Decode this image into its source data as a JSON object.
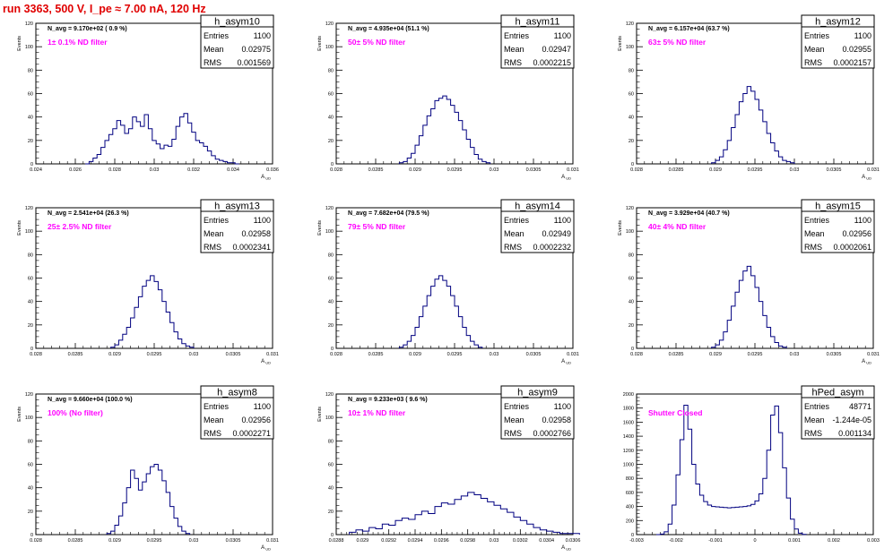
{
  "title": "run 3363,   500 V, I_pe ≈ 7.00 nA, 120 Hz",
  "colors": {
    "title": "#e00000",
    "hist": "#000080",
    "note": "#ff00ff",
    "frame": "#000000"
  },
  "chart_data": [
    {
      "type": "histogram",
      "name": "h_asym10",
      "ylabel": "Events",
      "xlabel": "A_{UD}",
      "xlim": [
        0.024,
        0.036
      ],
      "ylim": [
        0,
        120
      ],
      "xticks": [
        "0.024",
        "0.026",
        "0.028",
        "0.03",
        "0.032",
        "0.034",
        "0.036"
      ],
      "xtick_values": [
        0.024,
        0.026,
        0.028,
        0.03,
        0.032,
        0.034,
        0.036
      ],
      "yticks": [
        0,
        20,
        40,
        60,
        80,
        100,
        120
      ],
      "navg": "N_avg = 9.170e+02 ( 0.9 %)",
      "note": "1± 0.1% ND filter",
      "stats": [
        [
          "Entries",
          "1100"
        ],
        [
          "Mean",
          "0.02975"
        ],
        [
          "RMS",
          "0.001569"
        ]
      ],
      "bin_low": 0.0265,
      "bin_width": 0.0002,
      "values": [
        0,
        2,
        5,
        8,
        14,
        20,
        25,
        30,
        37,
        33,
        26,
        30,
        40,
        36,
        32,
        42,
        30,
        20,
        17,
        13,
        16,
        15,
        21,
        32,
        40,
        43,
        35,
        27,
        20,
        18,
        15,
        11,
        7,
        4,
        3,
        2,
        1,
        1,
        0
      ]
    },
    {
      "type": "histogram",
      "name": "h_asym11",
      "ylabel": "Events",
      "xlabel": "A_{UD}",
      "xlim": [
        0.028,
        0.031
      ],
      "ylim": [
        0,
        120
      ],
      "xticks": [
        "0.028",
        "0.0285",
        "0.029",
        "0.0295",
        "0.03",
        "0.0305",
        "0.031"
      ],
      "xtick_values": [
        0.028,
        0.0285,
        0.029,
        0.0295,
        0.03,
        0.0305,
        0.031
      ],
      "yticks": [
        0,
        20,
        40,
        60,
        80,
        100,
        120
      ],
      "navg": "N_avg = 4.935e+04 (51.1 %)",
      "note": "50± 5% ND filter",
      "stats": [
        [
          "Entries",
          "1100"
        ],
        [
          "Mean",
          "0.02947"
        ],
        [
          "RMS",
          "0.0002215"
        ]
      ],
      "bin_low": 0.0288,
      "bin_width": 5e-05,
      "values": [
        1,
        2,
        5,
        9,
        16,
        24,
        33,
        41,
        47,
        54,
        56,
        58,
        55,
        50,
        44,
        37,
        29,
        21,
        14,
        8,
        4,
        2,
        1
      ]
    },
    {
      "type": "histogram",
      "name": "h_asym12",
      "ylabel": "Events",
      "xlabel": "A_{UD}",
      "xlim": [
        0.028,
        0.031
      ],
      "ylim": [
        0,
        120
      ],
      "xticks": [
        "0.028",
        "0.0285",
        "0.029",
        "0.0295",
        "0.03",
        "0.0305",
        "0.031"
      ],
      "xtick_values": [
        0.028,
        0.0285,
        0.029,
        0.0295,
        0.03,
        0.0305,
        0.031
      ],
      "yticks": [
        0,
        20,
        40,
        60,
        80,
        100,
        120
      ],
      "navg": "N_avg = 6.157e+04 (63.7 %)",
      "note": "63± 5% ND filter",
      "stats": [
        [
          "Entries",
          "1100"
        ],
        [
          "Mean",
          "0.02955"
        ],
        [
          "RMS",
          "0.0002157"
        ]
      ],
      "bin_low": 0.02895,
      "bin_width": 5e-05,
      "values": [
        1,
        3,
        6,
        12,
        20,
        31,
        42,
        53,
        60,
        66,
        62,
        55,
        46,
        36,
        26,
        18,
        11,
        6,
        3,
        2,
        1
      ]
    },
    {
      "type": "histogram",
      "name": "h_asym13",
      "ylabel": "Events",
      "xlabel": "A_{UD}",
      "xlim": [
        0.028,
        0.031
      ],
      "ylim": [
        0,
        120
      ],
      "xticks": [
        "0.028",
        "0.0285",
        "0.029",
        "0.0295",
        "0.03",
        "0.0305",
        "0.031"
      ],
      "xtick_values": [
        0.028,
        0.0285,
        0.029,
        0.0295,
        0.03,
        0.0305,
        0.031
      ],
      "yticks": [
        0,
        20,
        40,
        60,
        80,
        100,
        120
      ],
      "navg": "N_avg = 2.541e+04 (26.3 %)",
      "note": "25± 2.5% ND filter",
      "stats": [
        [
          "Entries",
          "1100"
        ],
        [
          "Mean",
          "0.02958"
        ],
        [
          "RMS",
          "0.0002341"
        ]
      ],
      "bin_low": 0.02895,
      "bin_width": 5e-05,
      "values": [
        1,
        3,
        7,
        12,
        18,
        26,
        35,
        44,
        53,
        58,
        62,
        57,
        50,
        40,
        31,
        22,
        14,
        8,
        4,
        2,
        1
      ]
    },
    {
      "type": "histogram",
      "name": "h_asym14",
      "ylabel": "Events",
      "xlabel": "A_{UD}",
      "xlim": [
        0.028,
        0.031
      ],
      "ylim": [
        0,
        120
      ],
      "xticks": [
        "0.028",
        "0.0285",
        "0.029",
        "0.0295",
        "0.03",
        "0.0305",
        "0.031"
      ],
      "xtick_values": [
        0.028,
        0.0285,
        0.029,
        0.0295,
        0.03,
        0.0305,
        0.031
      ],
      "yticks": [
        0,
        20,
        40,
        60,
        80,
        100,
        120
      ],
      "navg": "N_avg = 7.682e+04 (79.5 %)",
      "note": "79± 5% ND filter",
      "stats": [
        [
          "Entries",
          "1100"
        ],
        [
          "Mean",
          "0.02949"
        ],
        [
          "RMS",
          "0.0002232"
        ]
      ],
      "bin_low": 0.0288,
      "bin_width": 5e-05,
      "values": [
        1,
        3,
        6,
        11,
        18,
        27,
        36,
        45,
        53,
        59,
        62,
        58,
        53,
        45,
        36,
        27,
        18,
        11,
        6,
        3,
        1
      ]
    },
    {
      "type": "histogram",
      "name": "h_asym15",
      "ylabel": "Events",
      "xlabel": "A_{UD}",
      "xlim": [
        0.028,
        0.031
      ],
      "ylim": [
        0,
        120
      ],
      "xticks": [
        "0.028",
        "0.0285",
        "0.029",
        "0.0295",
        "0.03",
        "0.0305",
        "0.031"
      ],
      "xtick_values": [
        0.028,
        0.0285,
        0.029,
        0.0295,
        0.03,
        0.0305,
        0.031
      ],
      "yticks": [
        0,
        20,
        40,
        60,
        80,
        100,
        120
      ],
      "navg": "N_avg = 3.929e+04 (40.7 %)",
      "note": "40± 4% ND filter",
      "stats": [
        [
          "Entries",
          "1100"
        ],
        [
          "Mean",
          "0.02956"
        ],
        [
          "RMS",
          "0.0002061"
        ]
      ],
      "bin_low": 0.02895,
      "bin_width": 5e-05,
      "values": [
        1,
        3,
        7,
        14,
        24,
        36,
        48,
        58,
        66,
        70,
        62,
        52,
        40,
        28,
        18,
        10,
        5,
        2,
        1
      ]
    },
    {
      "type": "histogram",
      "name": "h_asym8",
      "ylabel": "Events",
      "xlabel": "A_{UD}",
      "xlim": [
        0.028,
        0.031
      ],
      "ylim": [
        0,
        120
      ],
      "xticks": [
        "0.028",
        "0.0285",
        "0.029",
        "0.0295",
        "0.03",
        "0.0305",
        "0.031"
      ],
      "xtick_values": [
        0.028,
        0.0285,
        0.029,
        0.0295,
        0.03,
        0.0305,
        0.031
      ],
      "yticks": [
        0,
        20,
        40,
        60,
        80,
        100,
        120
      ],
      "navg": "N_avg = 9.660e+04 (100.0 %)",
      "note": "100% (No filter)",
      "stats": [
        [
          "Entries",
          "1100"
        ],
        [
          "Mean",
          "0.02956"
        ],
        [
          "RMS",
          "0.0002271"
        ]
      ],
      "bin_low": 0.0289,
      "bin_width": 5e-05,
      "values": [
        1,
        3,
        8,
        16,
        27,
        40,
        55,
        48,
        38,
        45,
        52,
        58,
        60,
        55,
        46,
        36,
        24,
        14,
        7,
        3,
        1
      ]
    },
    {
      "type": "histogram",
      "name": "h_asym9",
      "ylabel": "Events",
      "xlabel": "A_{UD}",
      "xlim": [
        0.0288,
        0.0306
      ],
      "ylim": [
        0,
        120
      ],
      "xticks": [
        "0.0288",
        "0.029",
        "0.0292",
        "0.0294",
        "0.0296",
        "0.0298",
        "0.03",
        "0.0302",
        "0.0304",
        "0.0306"
      ],
      "xtick_values": [
        0.0288,
        0.029,
        0.0292,
        0.0294,
        0.0296,
        0.0298,
        0.03,
        0.0302,
        0.0304,
        0.0306
      ],
      "yticks": [
        0,
        20,
        40,
        60,
        80,
        100,
        120
      ],
      "navg": "N_avg = 9.233e+03 ( 9.6 %)",
      "note": "10± 1% ND filter",
      "stats": [
        [
          "Entries",
          "1100"
        ],
        [
          "Mean",
          "0.02958"
        ],
        [
          "RMS",
          "0.0002766"
        ]
      ],
      "bin_low": 0.0289,
      "bin_width": 5e-05,
      "values": [
        2,
        4,
        3,
        6,
        5,
        9,
        8,
        12,
        14,
        13,
        17,
        20,
        18,
        24,
        27,
        26,
        30,
        33,
        36,
        34,
        31,
        28,
        25,
        22,
        19,
        15,
        12,
        9,
        6,
        4,
        3,
        2,
        1,
        1,
        1
      ]
    },
    {
      "type": "histogram",
      "name": "hPed_asym",
      "ylabel": "",
      "xlabel": "",
      "xlim": [
        -0.003,
        0.003
      ],
      "ylim": [
        0,
        2000
      ],
      "xticks": [
        "-0.003",
        "-0.002",
        "-0.001",
        "0",
        "0.001",
        "0.002",
        "0.003"
      ],
      "xtick_values": [
        -0.003,
        -0.002,
        -0.001,
        0,
        0.001,
        0.002,
        0.003
      ],
      "yticks": [
        0,
        200,
        400,
        600,
        800,
        1000,
        1200,
        1400,
        1600,
        1800,
        2000
      ],
      "navg": "",
      "note": "Shutter Closed",
      "stats": [
        [
          "Entries",
          "48771"
        ],
        [
          "Mean",
          "-1.244e-05"
        ],
        [
          "RMS",
          "0.001134"
        ]
      ],
      "bin_low": -0.0025,
      "bin_width": 0.0001,
      "values": [
        0,
        8,
        40,
        150,
        420,
        850,
        1350,
        1840,
        1500,
        1000,
        720,
        560,
        470,
        420,
        400,
        395,
        390,
        385,
        380,
        385,
        390,
        395,
        400,
        410,
        430,
        480,
        580,
        800,
        1200,
        1700,
        1830,
        1450,
        950,
        520,
        220,
        80,
        20,
        4
      ]
    }
  ]
}
